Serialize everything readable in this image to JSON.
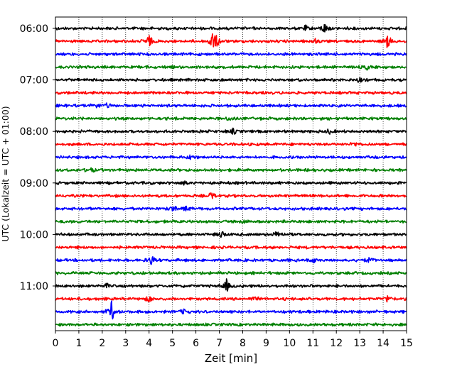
{
  "chart_data": {
    "type": "line",
    "title": "",
    "xlabel": "Zeit  [min]",
    "ylabel": "UTC (Lokalzeit = UTC + 01:00)",
    "xlim": [
      0,
      15
    ],
    "x_ticks": [
      0,
      1,
      2,
      3,
      4,
      5,
      6,
      7,
      8,
      9,
      10,
      11,
      12,
      13,
      14,
      15
    ],
    "y_tick_labels": [
      "06:00",
      "07:00",
      "08:00",
      "09:00",
      "10:00",
      "11:00"
    ],
    "grid": "vertical dotted",
    "row_interval_minutes": 15,
    "row_color_cycle": [
      "#000000",
      "#ff0000",
      "#0000ff",
      "#008000"
    ],
    "rows": [
      {
        "label": "06:00",
        "events": [
          [
            11.5,
            1.8
          ],
          [
            10.7,
            0.8
          ]
        ]
      },
      {
        "label": "06:15",
        "events": [
          [
            4.0,
            2.0
          ],
          [
            6.7,
            3.0
          ],
          [
            6.9,
            1.5
          ],
          [
            14.2,
            2.5
          ],
          [
            11.1,
            0.8
          ]
        ]
      },
      {
        "label": "06:30",
        "events": []
      },
      {
        "label": "06:45",
        "events": [
          [
            13.3,
            0.8
          ]
        ]
      },
      {
        "label": "07:00",
        "events": [
          [
            13.0,
            0.7
          ]
        ]
      },
      {
        "label": "07:15",
        "events": []
      },
      {
        "label": "07:30",
        "events": [
          [
            1.7,
            1.0
          ],
          [
            2.2,
            0.7
          ]
        ]
      },
      {
        "label": "07:45",
        "events": [
          [
            7.5,
            0.7
          ]
        ]
      },
      {
        "label": "08:00",
        "events": [
          [
            7.6,
            0.9
          ],
          [
            11.7,
            0.7
          ]
        ]
      },
      {
        "label": "08:15",
        "events": [
          [
            12.8,
            0.7
          ]
        ]
      },
      {
        "label": "08:30",
        "events": [
          [
            5.8,
            0.8
          ]
        ]
      },
      {
        "label": "08:45",
        "events": [
          [
            1.5,
            0.7
          ]
        ]
      },
      {
        "label": "09:00",
        "events": [
          [
            5.5,
            0.7
          ]
        ]
      },
      {
        "label": "09:15",
        "events": [
          [
            6.7,
            1.2
          ]
        ]
      },
      {
        "label": "09:30",
        "events": [
          [
            5.0,
            1.0
          ],
          [
            5.6,
            0.8
          ]
        ]
      },
      {
        "label": "09:45",
        "events": [
          [
            8.1,
            0.6
          ]
        ]
      },
      {
        "label": "10:00",
        "events": [
          [
            9.5,
            1.2
          ],
          [
            7.1,
            1.2
          ]
        ]
      },
      {
        "label": "10:15",
        "events": []
      },
      {
        "label": "10:30",
        "events": [
          [
            4.1,
            1.6
          ],
          [
            11.0,
            0.8
          ],
          [
            13.4,
            0.8
          ]
        ]
      },
      {
        "label": "10:45",
        "events": []
      },
      {
        "label": "11:00",
        "events": [
          [
            7.3,
            2.2
          ],
          [
            2.2,
            0.6
          ]
        ]
      },
      {
        "label": "11:15",
        "events": [
          [
            4.0,
            1.5
          ],
          [
            14.2,
            1.2
          ],
          [
            8.5,
            0.7
          ]
        ]
      },
      {
        "label": "11:30",
        "events": [
          [
            2.4,
            3.5
          ],
          [
            5.5,
            0.8
          ]
        ]
      },
      {
        "label": "11:45",
        "events": []
      }
    ]
  }
}
